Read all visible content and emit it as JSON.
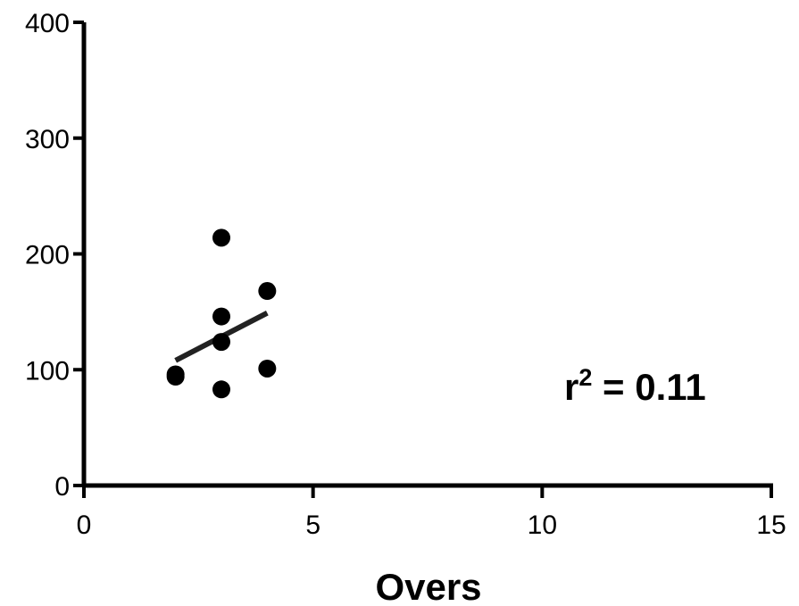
{
  "chart_data": {
    "type": "scatter",
    "title": "",
    "xlabel": "Overs",
    "ylabel": "",
    "xlim": [
      0,
      15
    ],
    "ylim": [
      0,
      400
    ],
    "x_ticks": [
      0,
      5,
      10,
      15
    ],
    "y_ticks": [
      0,
      100,
      200,
      300,
      400
    ],
    "x_tick_labels": [
      "0",
      "5",
      "10",
      "15"
    ],
    "y_tick_labels": [
      "0",
      "100",
      "200",
      "300",
      "400"
    ],
    "grid": false,
    "legend": "none",
    "series": [
      {
        "x": [
          2,
          2,
          3,
          3,
          3,
          3,
          4,
          4
        ],
        "y": [
          96,
          94,
          214,
          146,
          124,
          83,
          168,
          101
        ],
        "color": "#000000"
      }
    ],
    "fit_line": {
      "type": "linear",
      "x": [
        2,
        4
      ],
      "y": [
        108,
        149
      ],
      "color": "#222222"
    },
    "annotation": {
      "base": "r",
      "superscript": "2",
      "text": " = 0.11"
    }
  }
}
